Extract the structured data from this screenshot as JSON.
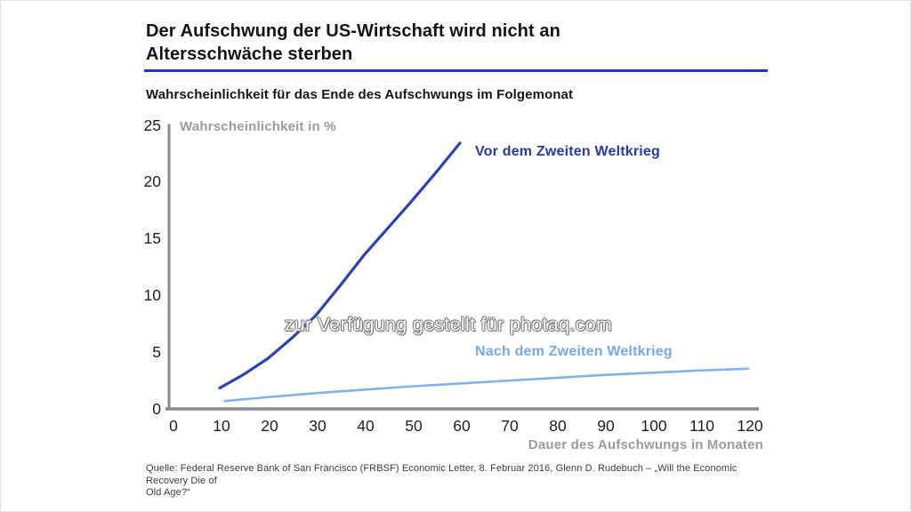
{
  "page": {
    "title_lines": [
      "Der Aufschwung der US-Wirtschaft wird nicht an",
      "Altersschwäche sterben"
    ],
    "subtitle": "Wahrscheinlichkeit für das Ende des Aufschwungs im Folgemonat",
    "watermark": "zur Verfügung gestellt für photaq.com",
    "source_lines": [
      "Quelle: Federal Reserve Bank of San Francisco (FRBSF) Economic Letter, 8. Februar 2016, Glenn D. Rudebuch – „Will the Economic Recovery Die of",
      "Old Age?“"
    ],
    "accent_rule_color": "#2135c4"
  },
  "chart_data": {
    "type": "line",
    "title": "Wahrscheinlichkeit für das Ende des Aufschwungs im Folgemonat",
    "xlabel": "Dauer des Aufschwungs in Monaten",
    "ylabel": "Wahrscheinlichkeit in %",
    "xlim": [
      0,
      120
    ],
    "ylim": [
      0,
      25
    ],
    "x_ticks": [
      0,
      10,
      20,
      30,
      40,
      50,
      60,
      70,
      80,
      90,
      100,
      110,
      120
    ],
    "y_ticks": [
      0,
      5,
      10,
      15,
      20,
      25
    ],
    "grid": false,
    "legend_position": "inline-annotations",
    "axis_color": "#8a8a8a",
    "series": [
      {
        "name": "Vor dem Zweiten Weltkrieg",
        "color": "#2b41b5",
        "label_color": "#2737b2",
        "line_width": 3.2,
        "x": [
          10,
          15,
          20,
          25,
          30,
          35,
          40,
          45,
          50,
          55,
          60
        ],
        "y": [
          1.8,
          3.0,
          4.4,
          6.2,
          8.2,
          10.8,
          13.5,
          15.9,
          18.3,
          20.8,
          23.4
        ]
      },
      {
        "name": "Nach dem Zweiten Weltkrieg",
        "color": "#7db2ee",
        "label_color": "#74a9ec",
        "line_width": 2.6,
        "x": [
          11,
          20,
          30,
          40,
          50,
          60,
          70,
          80,
          90,
          100,
          110,
          120
        ],
        "y": [
          0.65,
          1.0,
          1.35,
          1.65,
          1.95,
          2.2,
          2.45,
          2.7,
          2.95,
          3.15,
          3.35,
          3.5
        ]
      }
    ]
  }
}
